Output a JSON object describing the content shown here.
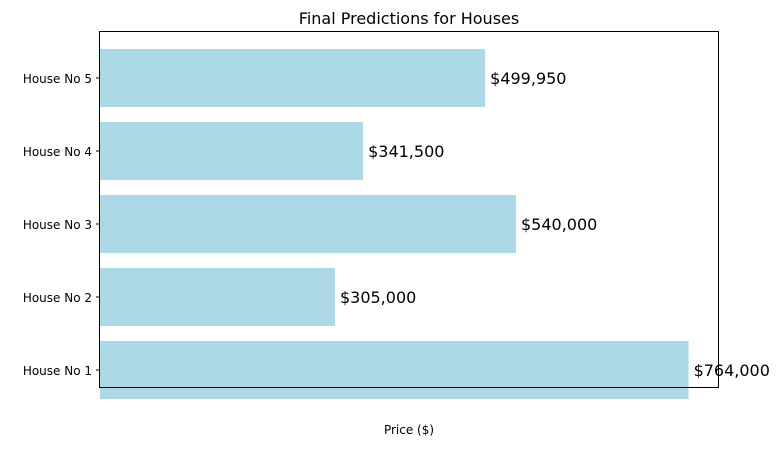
{
  "chart_data": {
    "type": "bar",
    "orientation": "horizontal",
    "title": "Final Predictions for Houses",
    "xlabel": "Price ($)",
    "ylabel": "",
    "categories": [
      "House No 1",
      "House No 2",
      "House No 3",
      "House No 4",
      "House No 5"
    ],
    "values": [
      764000,
      305000,
      540000,
      341500,
      499950
    ],
    "data_labels": [
      "$764,000",
      "$305,000",
      "$540,000",
      "$341,500",
      "$499,950"
    ],
    "xlim": [
      0,
      802200
    ],
    "x_ticks_visible": false,
    "grid": false,
    "legend": "none",
    "bar_color": "#add8e6",
    "axis_color": "#000000"
  }
}
